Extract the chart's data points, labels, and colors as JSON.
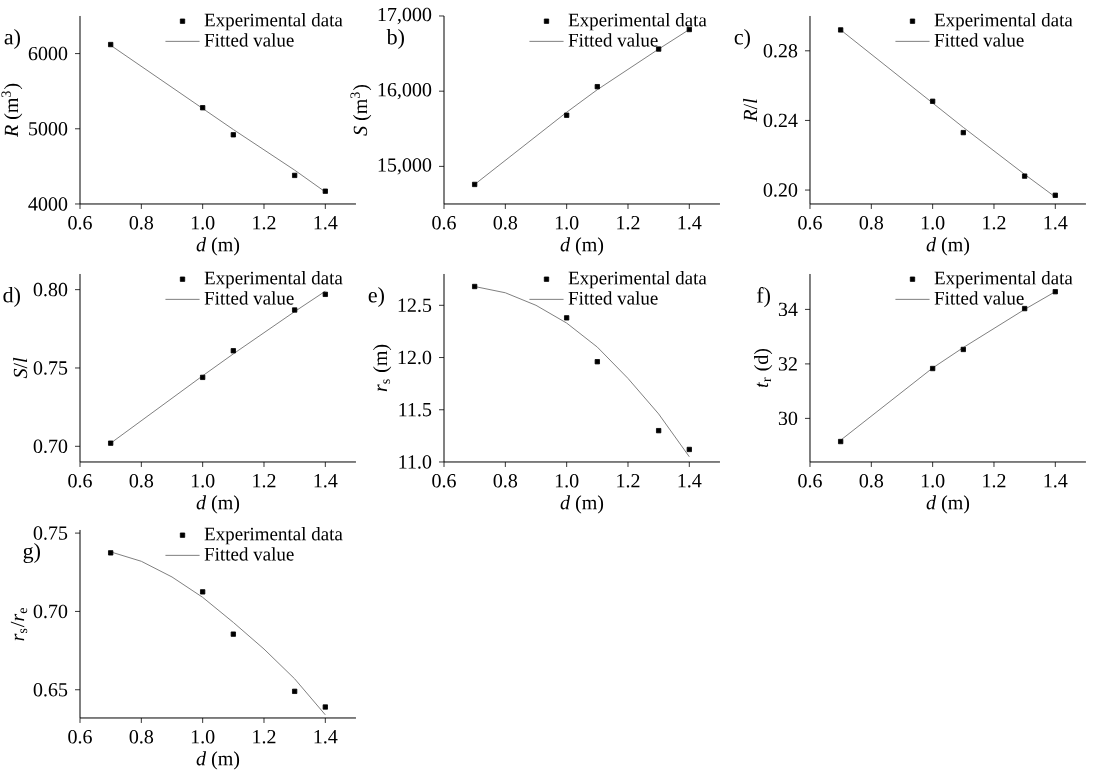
{
  "chart_data": [
    {
      "type": "scatter",
      "title": "a)",
      "xlabel": "*d* (m)",
      "ylabel": "*R* (m$^{3}$)",
      "xlim": [
        0.6,
        1.5
      ],
      "ylim": [
        4000,
        6500
      ],
      "xticks": [
        {
          "value": 0.6,
          "label": "0.6"
        },
        {
          "value": 0.8,
          "label": "0.8"
        },
        {
          "value": 1.0,
          "label": "1.0"
        },
        {
          "value": 1.2,
          "label": "1.2"
        },
        {
          "value": 1.4,
          "label": "1.4"
        }
      ],
      "yticks": [
        {
          "value": 4000,
          "label": "4000"
        },
        {
          "value": 5000,
          "label": "5000"
        },
        {
          "value": 6000,
          "label": "6000"
        }
      ],
      "legend": "top right",
      "series": [
        {
          "name": "Experimental data",
          "type": "scatter",
          "marker": "square",
          "color": "#000000",
          "x": [
            0.7,
            1.0,
            1.1,
            1.3,
            1.4
          ],
          "values": [
            6120,
            5280,
            4920,
            4380,
            4170
          ]
        },
        {
          "name": "Fitted value",
          "type": "line",
          "marker": "none",
          "color": "#808080",
          "x": [
            0.7,
            1.0,
            1.1,
            1.3,
            1.4
          ],
          "values": [
            6110,
            5270,
            4990,
            4450,
            4160
          ]
        }
      ]
    },
    {
      "type": "scatter",
      "title": "b)",
      "xlabel": "*d* (m)",
      "ylabel": "*S* (m$^{3}$)",
      "xlim": [
        0.6,
        1.5
      ],
      "ylim": [
        14500,
        17000
      ],
      "xticks": [
        {
          "value": 0.6,
          "label": "0.6"
        },
        {
          "value": 0.8,
          "label": "0.8"
        },
        {
          "value": 1.0,
          "label": "1.0"
        },
        {
          "value": 1.2,
          "label": "1.2"
        },
        {
          "value": 1.4,
          "label": "1.4"
        }
      ],
      "yticks": [
        {
          "value": 15000,
          "label": "15,000"
        },
        {
          "value": 16000,
          "label": "16,000"
        },
        {
          "value": 17000,
          "label": "17,000"
        }
      ],
      "legend": "top right",
      "series": [
        {
          "name": "Experimental data",
          "type": "scatter",
          "marker": "square",
          "color": "#000000",
          "x": [
            0.7,
            1.0,
            1.1,
            1.3,
            1.4
          ],
          "values": [
            14760,
            15680,
            16060,
            16560,
            16820
          ]
        },
        {
          "name": "Fitted value",
          "type": "line",
          "marker": "none",
          "color": "#808080",
          "x": [
            0.7,
            1.0,
            1.1,
            1.3,
            1.4
          ],
          "values": [
            14760,
            15720,
            16020,
            16560,
            16820
          ]
        }
      ]
    },
    {
      "type": "scatter",
      "title": "c)",
      "xlabel": "*d* (m)",
      "ylabel": "*R*/*l*",
      "xlim": [
        0.6,
        1.5
      ],
      "ylim": [
        0.192,
        0.3
      ],
      "xticks": [
        {
          "value": 0.6,
          "label": "0.6"
        },
        {
          "value": 0.8,
          "label": "0.8"
        },
        {
          "value": 1.0,
          "label": "1.0"
        },
        {
          "value": 1.2,
          "label": "1.2"
        },
        {
          "value": 1.4,
          "label": "1.4"
        }
      ],
      "yticks": [
        {
          "value": 0.2,
          "label": "0.20"
        },
        {
          "value": 0.24,
          "label": "0.24"
        },
        {
          "value": 0.28,
          "label": "0.28"
        }
      ],
      "legend": "top right",
      "series": [
        {
          "name": "Experimental data",
          "type": "scatter",
          "marker": "square",
          "color": "#000000",
          "x": [
            0.7,
            1.0,
            1.1,
            1.3,
            1.4
          ],
          "values": [
            0.292,
            0.251,
            0.233,
            0.208,
            0.197
          ]
        },
        {
          "name": "Fitted value",
          "type": "line",
          "marker": "none",
          "color": "#808080",
          "x": [
            0.7,
            1.0,
            1.1,
            1.3,
            1.4
          ],
          "values": [
            0.292,
            0.25,
            0.236,
            0.209,
            0.196
          ]
        }
      ]
    },
    {
      "type": "scatter",
      "title": "d)",
      "xlabel": "*d* (m)",
      "ylabel": "*S*/*l*",
      "xlim": [
        0.6,
        1.5
      ],
      "ylim": [
        0.69,
        0.81
      ],
      "xticks": [
        {
          "value": 0.6,
          "label": "0.6"
        },
        {
          "value": 0.8,
          "label": "0.8"
        },
        {
          "value": 1.0,
          "label": "1.0"
        },
        {
          "value": 1.2,
          "label": "1.2"
        },
        {
          "value": 1.4,
          "label": "1.4"
        }
      ],
      "yticks": [
        {
          "value": 0.7,
          "label": "0.70"
        },
        {
          "value": 0.75,
          "label": "0.75"
        },
        {
          "value": 0.8,
          "label": "0.80"
        }
      ],
      "legend": "top right",
      "series": [
        {
          "name": "Experimental data",
          "type": "scatter",
          "marker": "square",
          "color": "#000000",
          "x": [
            0.7,
            1.0,
            1.1,
            1.3,
            1.4
          ],
          "values": [
            0.702,
            0.744,
            0.761,
            0.787,
            0.797
          ]
        },
        {
          "name": "Fitted value",
          "type": "line",
          "marker": "none",
          "color": "#808080",
          "x": [
            0.7,
            1.0,
            1.1,
            1.3,
            1.4
          ],
          "values": [
            0.702,
            0.745,
            0.759,
            0.786,
            0.799
          ]
        }
      ]
    },
    {
      "type": "scatter",
      "title": "e)",
      "xlabel": "*d* (m)",
      "ylabel": "*r*$_{s}$ (m)",
      "xlim": [
        0.6,
        1.5
      ],
      "ylim": [
        11.0,
        12.8
      ],
      "xticks": [
        {
          "value": 0.6,
          "label": "0.6"
        },
        {
          "value": 0.8,
          "label": "0.8"
        },
        {
          "value": 1.0,
          "label": "1.0"
        },
        {
          "value": 1.2,
          "label": "1.2"
        },
        {
          "value": 1.4,
          "label": "1.4"
        }
      ],
      "yticks": [
        {
          "value": 11.0,
          "label": "11.0"
        },
        {
          "value": 11.5,
          "label": "11.5"
        },
        {
          "value": 12.0,
          "label": "12.0"
        },
        {
          "value": 12.5,
          "label": "12.5"
        }
      ],
      "legend": "top right",
      "series": [
        {
          "name": "Experimental data",
          "type": "scatter",
          "marker": "square",
          "color": "#000000",
          "x": [
            0.7,
            1.0,
            1.1,
            1.3,
            1.4
          ],
          "values": [
            12.68,
            12.38,
            11.96,
            11.3,
            11.12
          ]
        },
        {
          "name": "Fitted value",
          "type": "line",
          "marker": "none",
          "color": "#808080",
          "x": [
            0.7,
            0.8,
            0.9,
            1.0,
            1.1,
            1.2,
            1.3,
            1.4
          ],
          "values": [
            12.68,
            12.62,
            12.5,
            12.33,
            12.1,
            11.8,
            11.46,
            11.05
          ]
        }
      ]
    },
    {
      "type": "scatter",
      "title": "f)",
      "xlabel": "*d* (m)",
      "ylabel": "*t*$_{r}$ (d)",
      "xlim": [
        0.6,
        1.5
      ],
      "ylim": [
        28.4,
        35.3
      ],
      "xticks": [
        {
          "value": 0.6,
          "label": "0.6"
        },
        {
          "value": 0.8,
          "label": "0.8"
        },
        {
          "value": 1.0,
          "label": "1.0"
        },
        {
          "value": 1.2,
          "label": "1.2"
        },
        {
          "value": 1.4,
          "label": "1.4"
        }
      ],
      "yticks": [
        {
          "value": 30,
          "label": "30"
        },
        {
          "value": 32,
          "label": "32"
        },
        {
          "value": 34,
          "label": "34"
        }
      ],
      "legend": "top right",
      "series": [
        {
          "name": "Experimental data",
          "type": "scatter",
          "marker": "square",
          "color": "#000000",
          "x": [
            0.7,
            1.0,
            1.1,
            1.3,
            1.4
          ],
          "values": [
            29.15,
            31.83,
            32.53,
            34.03,
            34.65
          ]
        },
        {
          "name": "Fitted value",
          "type": "line",
          "marker": "none",
          "color": "#808080",
          "x": [
            0.7,
            1.0,
            1.1,
            1.3,
            1.4
          ],
          "values": [
            29.2,
            31.85,
            32.6,
            34.0,
            34.65
          ]
        }
      ]
    },
    {
      "type": "scatter",
      "title": "g)",
      "xlabel": "*d* (m)",
      "ylabel": "*r*$_{s}$/*r*$_{e}$",
      "xlim": [
        0.6,
        1.5
      ],
      "ylim": [
        0.632,
        0.752
      ],
      "xticks": [
        {
          "value": 0.6,
          "label": "0.6"
        },
        {
          "value": 0.8,
          "label": "0.8"
        },
        {
          "value": 1.0,
          "label": "1.0"
        },
        {
          "value": 1.2,
          "label": "1.2"
        },
        {
          "value": 1.4,
          "label": "1.4"
        }
      ],
      "yticks": [
        {
          "value": 0.65,
          "label": "0.65"
        },
        {
          "value": 0.7,
          "label": "0.70"
        },
        {
          "value": 0.75,
          "label": "0.75"
        }
      ],
      "legend": "top right",
      "series": [
        {
          "name": "Experimental data",
          "type": "scatter",
          "marker": "square",
          "color": "#000000",
          "x": [
            0.7,
            1.0,
            1.1,
            1.3,
            1.4
          ],
          "values": [
            0.7374,
            0.7125,
            0.6855,
            0.649,
            0.639
          ]
        },
        {
          "name": "Fitted value",
          "type": "line",
          "marker": "none",
          "color": "#808080",
          "x": [
            0.7,
            0.8,
            0.9,
            1.0,
            1.1,
            1.2,
            1.3,
            1.4
          ],
          "values": [
            0.738,
            0.732,
            0.722,
            0.709,
            0.693,
            0.676,
            0.657,
            0.634
          ]
        }
      ]
    }
  ]
}
